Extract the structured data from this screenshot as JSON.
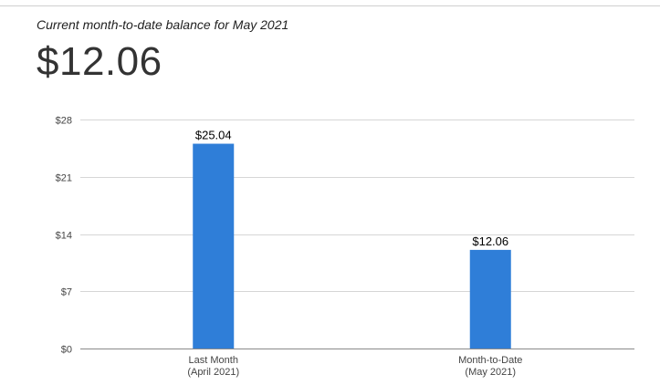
{
  "header": {
    "subtitle": "Current month-to-date balance for May 2021",
    "balance": "$12.06"
  },
  "colors": {
    "bar": "#2f7ed8",
    "grid": "#d6d6d6",
    "axis": "#8a8a8a"
  },
  "chart_data": {
    "type": "bar",
    "categories": [
      [
        "Last Month",
        "(April 2021)"
      ],
      [
        "Month-to-Date",
        "(May 2021)"
      ]
    ],
    "values": [
      25.04,
      12.06
    ],
    "data_labels": [
      "$25.04",
      "$12.06"
    ],
    "ylim": [
      0,
      28
    ],
    "yticks": [
      0,
      7,
      14,
      21,
      28
    ],
    "ytick_labels": [
      "$0",
      "$7",
      "$14",
      "$21",
      "$28"
    ],
    "grid": true,
    "legend": "none"
  }
}
